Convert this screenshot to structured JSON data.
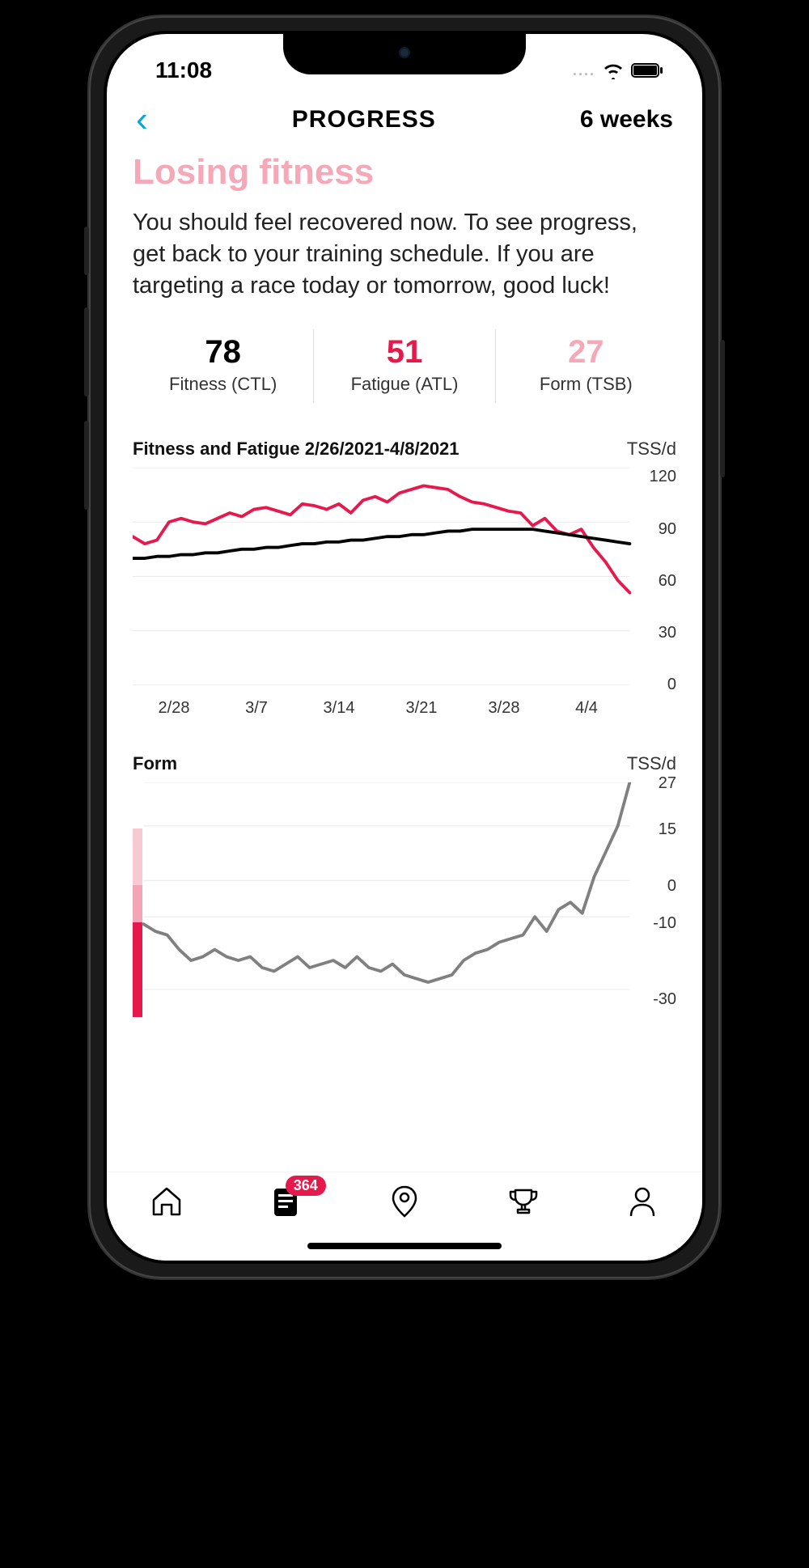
{
  "status_bar": {
    "time": "11:08",
    "dots": "....",
    "wifi_bars": 3,
    "battery_pct": 95
  },
  "header": {
    "back_glyph": "‹",
    "title": "PROGRESS",
    "range_label": "6 weeks"
  },
  "page": {
    "heading": "Losing fitness",
    "heading_color": "#f5a9b8",
    "body": "You should feel recovered now. To see progress, get back to your training schedule. If you are targeting a race today or tomorrow, good luck!"
  },
  "stats": [
    {
      "value": "78",
      "label": "Fitness (CTL)",
      "color": "#000000"
    },
    {
      "value": "51",
      "label": "Fatigue (ATL)",
      "color": "#e5194b"
    },
    {
      "value": "27",
      "label": "Form (TSB)",
      "color": "#f5a9b8"
    }
  ],
  "chart1": {
    "type": "line",
    "title": "Fitness and Fatigue 2/26/2021-4/8/2021",
    "unit": "TSS/d",
    "x_labels": [
      "2/28",
      "3/7",
      "3/14",
      "3/21",
      "3/28",
      "4/4"
    ],
    "y_ticks": [
      120,
      90,
      60,
      30,
      0
    ],
    "ylim": [
      0,
      120
    ],
    "grid_color": "#e8e8e8",
    "background_color": "#ffffff",
    "font_size_labels": 20,
    "series": [
      {
        "name": "Fatigue (ATL)",
        "color": "#e5194b",
        "stroke_width": 4,
        "values": [
          82,
          78,
          80,
          90,
          92,
          90,
          89,
          92,
          95,
          93,
          97,
          98,
          96,
          94,
          100,
          99,
          97,
          100,
          95,
          102,
          104,
          101,
          106,
          108,
          110,
          109,
          108,
          104,
          101,
          100,
          98,
          96,
          95,
          88,
          92,
          85,
          83,
          86,
          76,
          68,
          58,
          51
        ]
      },
      {
        "name": "Fitness (CTL)",
        "color": "#000000",
        "stroke_width": 4,
        "values": [
          70,
          70,
          71,
          71,
          72,
          72,
          73,
          73,
          74,
          75,
          75,
          76,
          76,
          77,
          78,
          78,
          79,
          79,
          80,
          80,
          81,
          82,
          82,
          83,
          83,
          84,
          85,
          85,
          86,
          86,
          86,
          86,
          86,
          86,
          85,
          84,
          83,
          82,
          81,
          80,
          79,
          78
        ]
      }
    ]
  },
  "chart2": {
    "type": "line",
    "title": "Form",
    "unit": "TSS/d",
    "y_ticks": [
      27,
      15,
      0,
      -10,
      -30
    ],
    "ylim": [
      -35,
      27
    ],
    "grid_color": "#e8e8e8",
    "background_color": "#ffffff",
    "font_size_labels": 20,
    "zones": [
      {
        "from": 15,
        "to": 27,
        "color": "#ffffff"
      },
      {
        "from": 0,
        "to": 15,
        "color": "#f7c9d3"
      },
      {
        "from": -10,
        "to": 0,
        "color": "#f3a5b8"
      },
      {
        "from": -35,
        "to": -10,
        "color": "#e5194b"
      }
    ],
    "series": [
      {
        "name": "Form (TSB)",
        "color": "#808080",
        "stroke_width": 4,
        "values": [
          -12,
          -14,
          -15,
          -19,
          -22,
          -21,
          -19,
          -21,
          -22,
          -21,
          -24,
          -25,
          -23,
          -21,
          -24,
          -23,
          -22,
          -24,
          -21,
          -24,
          -25,
          -23,
          -26,
          -27,
          -28,
          -27,
          -26,
          -22,
          -20,
          -19,
          -17,
          -16,
          -15,
          -10,
          -14,
          -8,
          -6,
          -9,
          1,
          8,
          15,
          27
        ]
      }
    ]
  },
  "tabbar": {
    "badge_count": "364",
    "badge_color": "#e5194b",
    "active_index": 1,
    "items": [
      {
        "name": "home-icon"
      },
      {
        "name": "feed-icon"
      },
      {
        "name": "location-icon"
      },
      {
        "name": "trophy-icon"
      },
      {
        "name": "profile-icon"
      }
    ]
  }
}
